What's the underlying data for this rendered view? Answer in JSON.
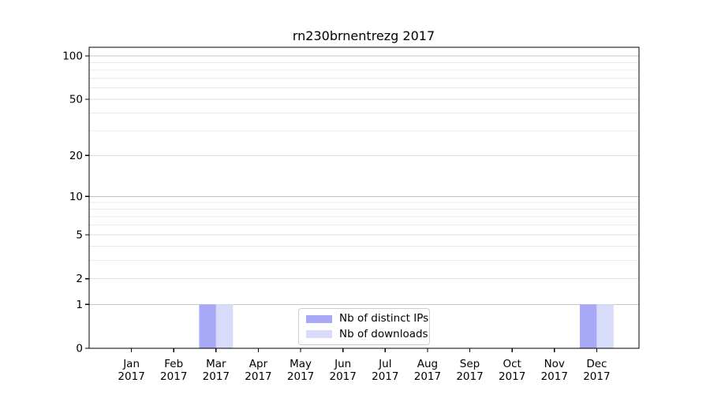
{
  "chart_data": {
    "type": "bar",
    "title": "rn230brnentrezg 2017",
    "categories": [
      "Jan",
      "Feb",
      "Mar",
      "Apr",
      "May",
      "Jun",
      "Jul",
      "Aug",
      "Sep",
      "Oct",
      "Nov",
      "Dec"
    ],
    "category_year": "2017",
    "series": [
      {
        "name": "Nb of distinct IPs",
        "color": "#a8a9f6",
        "values": [
          0,
          0,
          1,
          0,
          0,
          0,
          0,
          0,
          0,
          0,
          0,
          1
        ]
      },
      {
        "name": "Nb of downloads",
        "color": "#d9dbfa",
        "values": [
          0,
          0,
          1,
          0,
          0,
          0,
          0,
          0,
          0,
          0,
          0,
          1
        ]
      }
    ],
    "yscale": "log1p",
    "ylim": [
      0,
      115
    ],
    "xlim": [
      -1,
      12
    ],
    "yticks": [
      0,
      1,
      2,
      5,
      10,
      20,
      50,
      100
    ],
    "yticks_minor": [
      3,
      4,
      6,
      7,
      8,
      9,
      30,
      40,
      60,
      70,
      80,
      90
    ],
    "grid": "horizontal",
    "legend_position": "lower center",
    "bar_width_fraction": 0.4
  },
  "colors": {
    "background": "#ffffff",
    "axis": "#000000",
    "tick_text": "#000000",
    "grid_major": "#c6c6c6",
    "grid_mid": "#dfdfdf",
    "grid_minor": "#ebebeb",
    "legend_border": "#cccccc"
  }
}
